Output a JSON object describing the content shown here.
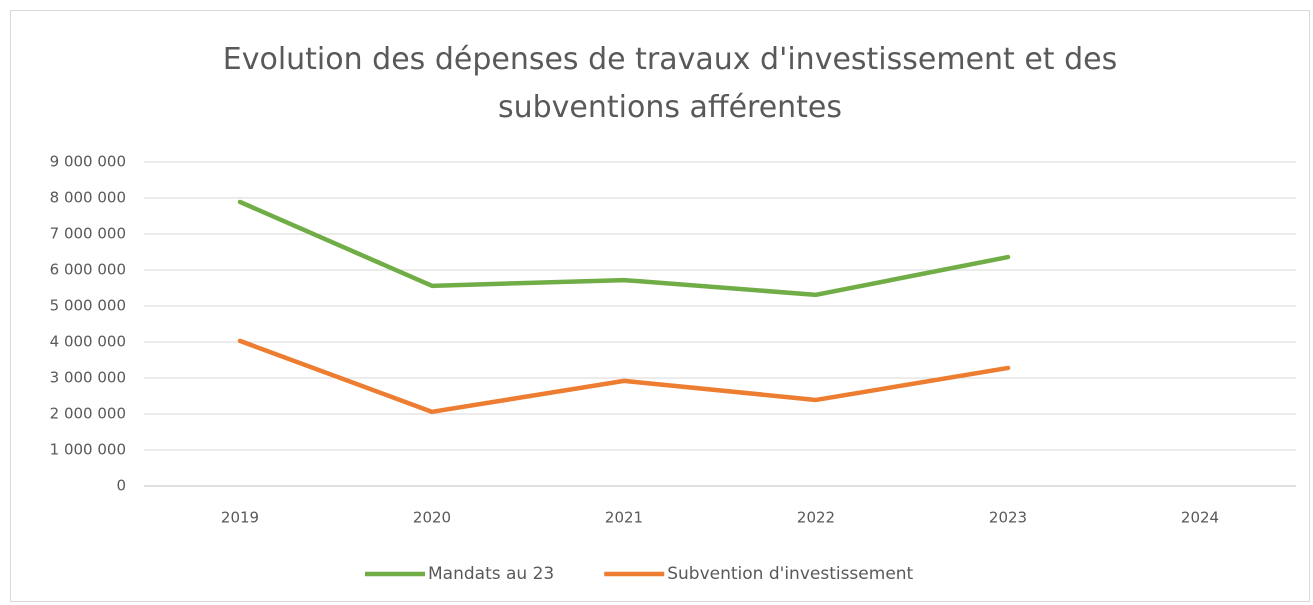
{
  "chart_data": {
    "type": "line",
    "title": "Evolution des dépenses de travaux d'investissement et des subventions afférentes",
    "categories": [
      "2019",
      "2020",
      "2021",
      "2022",
      "2023",
      "2024"
    ],
    "series": [
      {
        "name": "Mandats au 23",
        "color": "#70ad47",
        "values": [
          7890000,
          5560000,
          5720000,
          5310000,
          6360000,
          null
        ]
      },
      {
        "name": "Subvention d'investissement",
        "color": "#ed7d31",
        "values": [
          4030000,
          2060000,
          2920000,
          2390000,
          3280000,
          null
        ]
      }
    ],
    "ylim": [
      0,
      9000000
    ],
    "yticks": [
      0,
      {
        "value": 1000000,
        "label": "1 000 000"
      },
      {
        "value": 2000000,
        "label": "2 000 000"
      },
      {
        "value": 3000000,
        "label": "3 000 000"
      },
      {
        "value": 4000000,
        "label": "4 000 000"
      },
      {
        "value": 5000000,
        "label": "5 000 000"
      },
      {
        "value": 6000000,
        "label": "6 000 000"
      },
      {
        "value": 7000000,
        "label": "7 000 000"
      },
      {
        "value": 8000000,
        "label": "8 000 000"
      },
      {
        "value": 9000000,
        "label": "9 000 000"
      }
    ],
    "grid": true,
    "legend": "bottom"
  }
}
